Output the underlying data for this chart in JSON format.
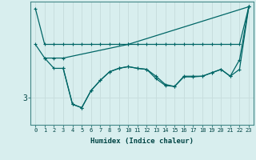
{
  "xlabel": "Humidex (Indice chaleur)",
  "bg_color": "#d8eeee",
  "grid_color": "#c8dede",
  "line_color": "#006666",
  "xlim": [
    -0.5,
    23.5
  ],
  "ylim": [
    2.2,
    5.8
  ],
  "ytick_labels": [
    "3"
  ],
  "ytick_positions": [
    3
  ],
  "lines": [
    {
      "x": [
        0,
        1,
        2,
        3,
        4,
        5,
        6,
        7,
        8,
        9,
        10,
        11,
        12,
        13,
        14,
        15,
        16,
        17,
        18,
        19,
        20,
        21,
        22,
        23
      ],
      "y": [
        5.6,
        4.55,
        4.55,
        4.55,
        4.55,
        4.55,
        4.55,
        4.55,
        4.55,
        4.55,
        4.55,
        4.55,
        4.55,
        4.55,
        4.55,
        4.55,
        4.55,
        4.55,
        4.55,
        4.55,
        4.55,
        4.55,
        4.55,
        5.65
      ]
    },
    {
      "x": [
        0,
        1,
        2,
        3,
        10,
        23
      ],
      "y": [
        4.55,
        4.15,
        4.15,
        4.15,
        4.55,
        5.65
      ]
    },
    {
      "x": [
        1,
        2,
        3,
        4,
        5,
        6,
        7,
        8,
        9,
        10,
        11,
        12,
        13,
        14,
        15,
        16,
        17,
        18,
        19,
        20,
        21,
        22,
        23
      ],
      "y": [
        4.15,
        3.85,
        3.85,
        2.8,
        2.7,
        3.2,
        3.5,
        3.75,
        3.85,
        3.9,
        3.85,
        3.82,
        3.55,
        3.35,
        3.32,
        3.6,
        3.6,
        3.62,
        3.72,
        3.82,
        3.62,
        4.1,
        5.65
      ]
    },
    {
      "x": [
        3,
        4,
        5,
        6,
        7,
        8,
        9,
        10,
        11,
        12,
        13,
        14,
        15,
        16,
        17,
        18,
        19,
        20,
        21,
        22,
        23
      ],
      "y": [
        3.85,
        2.8,
        2.7,
        3.2,
        3.5,
        3.75,
        3.85,
        3.9,
        3.85,
        3.82,
        3.62,
        3.38,
        3.32,
        3.62,
        3.62,
        3.62,
        3.72,
        3.82,
        3.62,
        3.82,
        5.65
      ]
    }
  ]
}
